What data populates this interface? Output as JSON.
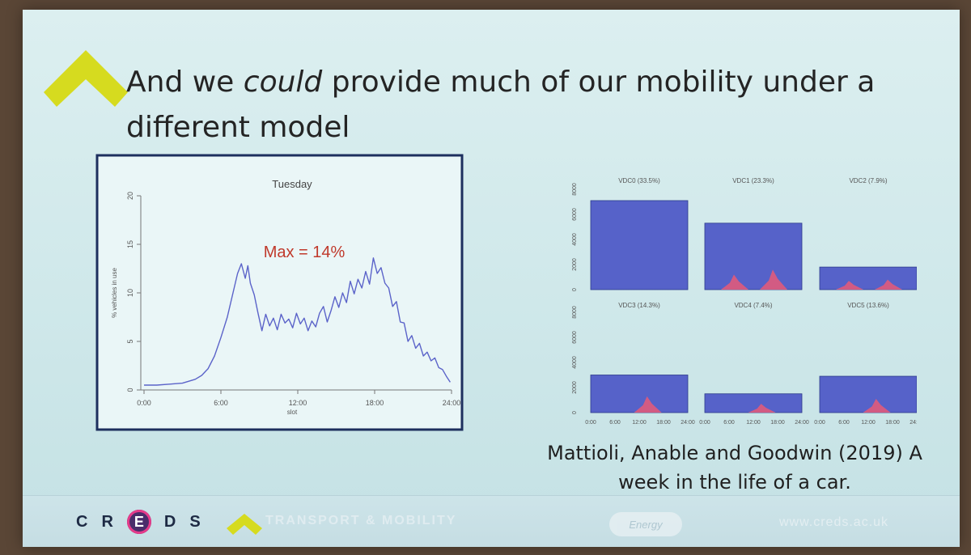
{
  "slide": {
    "title_pre": "And we ",
    "title_em": "could",
    "title_post": " provide much of our mobility under a different model",
    "citation": "Mattioli, Anable and Goodwin (2019) A week in the life of a car."
  },
  "footer": {
    "creds_letters": [
      "C",
      "R",
      "E",
      "D",
      "S"
    ],
    "theme": "TRANSPORT & MOBILITY",
    "partner": "Energy",
    "url": "www.creds.ac.uk"
  },
  "colors": {
    "brand_yellow": "#d6db1f",
    "area_fill": "#5662c9",
    "peak_fill": "#e05b7b",
    "line": "#5b63c9",
    "annotation": "#c0392b"
  },
  "chart_data": [
    {
      "type": "line",
      "title": "Tuesday",
      "xlabel": "slot",
      "ylabel": "% vehicles in use",
      "xticks": [
        "0:00",
        "6:00",
        "12:00",
        "18:00",
        "24:00"
      ],
      "yticks": [
        "0",
        "5",
        "10",
        "15",
        "20"
      ],
      "xlim": [
        0,
        24
      ],
      "ylim": [
        0,
        20
      ],
      "annotation": "Max = 14%",
      "series": [
        {
          "x": [
            0,
            1,
            2,
            3,
            3.5,
            4,
            4.5,
            5,
            5.5,
            6,
            6.5,
            7,
            7.3,
            7.6,
            7.9,
            8.1,
            8.3,
            8.6,
            8.9,
            9.2,
            9.5,
            9.8,
            10.1,
            10.4,
            10.7,
            11,
            11.3,
            11.6,
            11.9,
            12.2,
            12.5,
            12.8,
            13.1,
            13.4,
            13.7,
            14,
            14.3,
            14.6,
            14.9,
            15.2,
            15.5,
            15.8,
            16.1,
            16.4,
            16.7,
            17,
            17.3,
            17.6,
            17.9,
            18.2,
            18.5,
            18.8,
            19.1,
            19.4,
            19.7,
            20,
            20.3,
            20.6,
            20.9,
            21.2,
            21.5,
            21.8,
            22.1,
            22.4,
            22.7,
            23,
            23.3,
            23.6,
            23.9
          ],
          "y": [
            0.5,
            0.5,
            0.6,
            0.7,
            0.9,
            1.1,
            1.5,
            2.2,
            3.5,
            5.4,
            7.5,
            10.3,
            12.0,
            13.0,
            11.5,
            12.8,
            11.0,
            9.8,
            7.9,
            6.1,
            7.8,
            6.6,
            7.4,
            6.2,
            7.8,
            6.9,
            7.3,
            6.4,
            7.9,
            6.8,
            7.4,
            6.1,
            7.1,
            6.5,
            7.9,
            8.6,
            7.0,
            8.2,
            9.6,
            8.5,
            10.0,
            9.0,
            11.2,
            9.9,
            11.4,
            10.5,
            12.2,
            10.9,
            13.6,
            12.0,
            12.6,
            11.0,
            10.5,
            8.6,
            9.1,
            7.0,
            6.9,
            5.0,
            5.6,
            4.3,
            4.8,
            3.5,
            3.9,
            3.0,
            3.3,
            2.3,
            2.1,
            1.4,
            0.8
          ]
        }
      ]
    },
    {
      "type": "area",
      "ylim": [
        0,
        8000
      ],
      "yticks": [
        "0",
        "2000",
        "4000",
        "6000",
        "8000"
      ],
      "xticks": [
        "0:00",
        "6:00",
        "12:00",
        "18:00",
        "24:00"
      ],
      "panels": [
        {
          "title": "VDC0 (33.5%)",
          "base": 7100,
          "peaks": []
        },
        {
          "title": "VDC1 (23.3%)",
          "base": 5300,
          "peaks": [
            1200,
            1600
          ]
        },
        {
          "title": "VDC2 (7.9%)",
          "base": 1800,
          "peaks": [
            700,
            800
          ]
        },
        {
          "title": "VDC3 (14.3%)",
          "base": 3000,
          "peaks": [
            1300
          ]
        },
        {
          "title": "VDC4 (7.4%)",
          "base": 1500,
          "peaks": [
            700
          ]
        },
        {
          "title": "VDC5 (13.6%)",
          "base": 2900,
          "peaks": [
            1100
          ]
        }
      ]
    }
  ]
}
